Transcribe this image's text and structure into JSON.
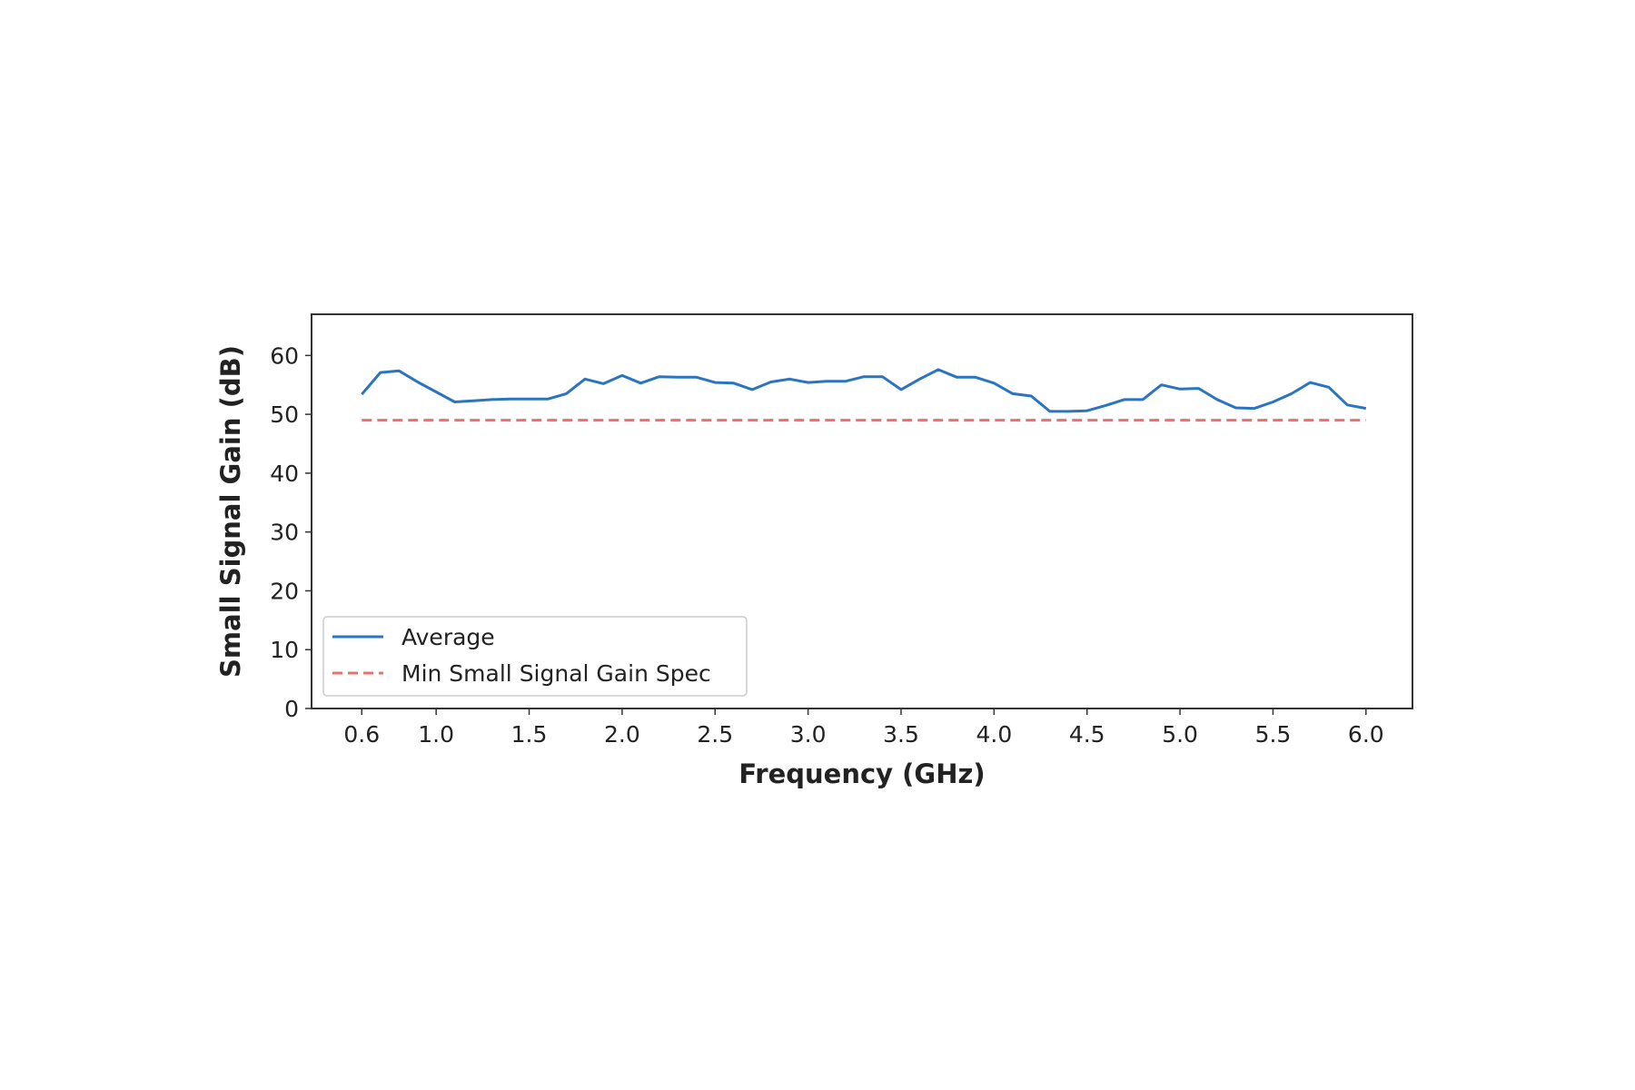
{
  "chart_data": {
    "type": "line",
    "xlabel": "Frequency (GHz)",
    "ylabel": "Small Signal Gain (dB)",
    "xlim": [
      0.33,
      6.25
    ],
    "ylim": [
      0,
      67
    ],
    "xticks": [
      0.6,
      1.0,
      1.5,
      2.0,
      2.5,
      3.0,
      3.5,
      4.0,
      4.5,
      5.0,
      5.5,
      6.0
    ],
    "xtick_labels": [
      "0.6",
      "1.0",
      "1.5",
      "2.0",
      "2.5",
      "3.0",
      "3.5",
      "4.0",
      "4.5",
      "5.0",
      "5.5",
      "6.0"
    ],
    "yticks": [
      0,
      10,
      20,
      30,
      40,
      50,
      60
    ],
    "ytick_labels": [
      "0",
      "10",
      "20",
      "30",
      "40",
      "50",
      "60"
    ],
    "grid": false,
    "legend_position": "lower-left",
    "series": [
      {
        "name": "Average",
        "color": "#2b74c0",
        "style": "solid",
        "x": [
          0.6,
          0.7,
          0.8,
          0.9,
          1.0,
          1.1,
          1.2,
          1.3,
          1.4,
          1.5,
          1.6,
          1.7,
          1.8,
          1.9,
          2.0,
          2.1,
          2.2,
          2.3,
          2.4,
          2.5,
          2.6,
          2.7,
          2.8,
          2.9,
          3.0,
          3.1,
          3.2,
          3.3,
          3.4,
          3.5,
          3.6,
          3.7,
          3.8,
          3.9,
          4.0,
          4.1,
          4.2,
          4.3,
          4.4,
          4.5,
          4.6,
          4.7,
          4.8,
          4.9,
          5.0,
          5.1,
          5.2,
          5.3,
          5.4,
          5.5,
          5.6,
          5.7,
          5.8,
          5.9,
          6.0
        ],
        "y": [
          53.4,
          57.1,
          57.4,
          55.5,
          53.8,
          52.1,
          52.3,
          52.5,
          52.6,
          52.6,
          52.6,
          53.5,
          56.0,
          55.2,
          56.6,
          55.3,
          56.4,
          56.3,
          56.3,
          55.4,
          55.3,
          54.2,
          55.5,
          56.0,
          55.4,
          55.6,
          55.6,
          56.4,
          56.4,
          54.2,
          56.0,
          57.6,
          56.3,
          56.3,
          55.3,
          53.5,
          53.1,
          50.5,
          50.5,
          50.6,
          51.5,
          52.5,
          52.5,
          55.0,
          54.3,
          54.4,
          52.5,
          51.1,
          51.0,
          52.1,
          53.5,
          55.4,
          54.6,
          51.6,
          51.0
        ]
      },
      {
        "name": "Min Small Signal Gain Spec",
        "color": "#e8716f",
        "style": "dashed",
        "x": [
          0.6,
          6.0
        ],
        "y": [
          49,
          49
        ]
      }
    ]
  }
}
